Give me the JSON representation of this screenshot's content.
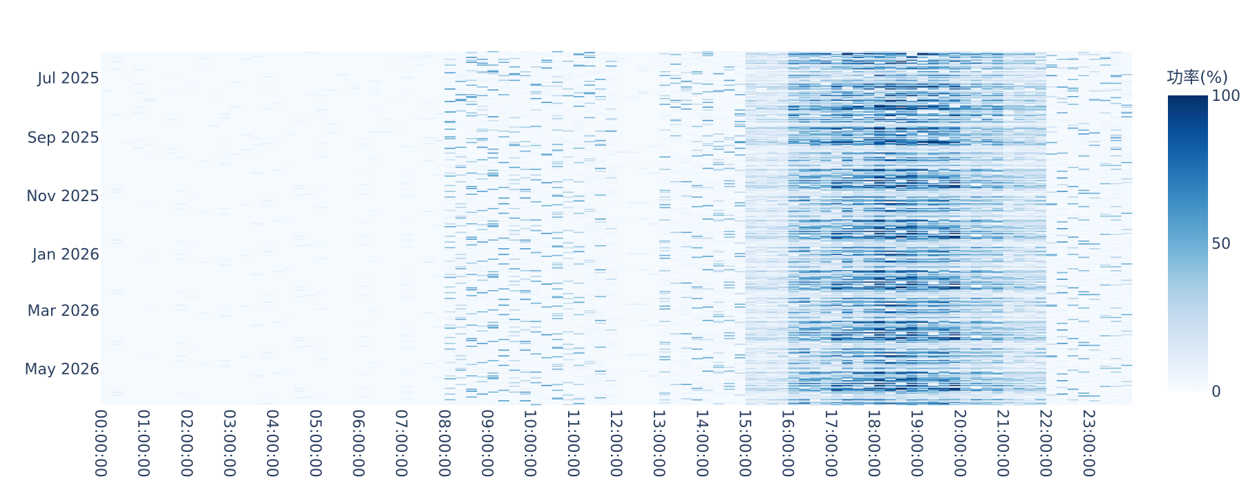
{
  "chart_data": {
    "type": "heatmap",
    "title": "",
    "xlabel": "",
    "ylabel": "",
    "x_categories": [
      "00:00:00",
      "01:00:00",
      "02:00:00",
      "03:00:00",
      "04:00:00",
      "05:00:00",
      "06:00:00",
      "07:00:00",
      "08:00:00",
      "09:00:00",
      "10:00:00",
      "11:00:00",
      "12:00:00",
      "13:00:00",
      "14:00:00",
      "15:00:00",
      "16:00:00",
      "17:00:00",
      "18:00:00",
      "19:00:00",
      "20:00:00",
      "21:00:00",
      "22:00:00",
      "23:00:00"
    ],
    "x_resolution": "15min",
    "y_range": [
      "2025-06-03",
      "2026-06-08"
    ],
    "y_tick_labels": [
      "Jul 2025",
      "Sep 2025",
      "Nov 2025",
      "Jan 2026",
      "Mar 2026",
      "May 2026"
    ],
    "y_tick_dates": [
      "2025-07-01",
      "2025-09-01",
      "2025-11-01",
      "2026-01-01",
      "2026-03-01",
      "2026-05-01"
    ],
    "hourly_mean_percent": [
      1,
      1,
      1,
      1,
      1,
      1,
      1,
      1,
      8,
      5,
      4,
      6,
      0,
      10,
      14,
      20,
      45,
      55,
      65,
      58,
      40,
      28,
      12,
      8
    ],
    "colorscale": "Blues",
    "colors": {
      "low": "#f7fbff",
      "high": "#08306b"
    },
    "colorbar": {
      "title": "功率(%)",
      "min": 0,
      "max": 100,
      "ticks": [
        "0",
        "50",
        "100"
      ]
    },
    "value_range": [
      0,
      100
    ],
    "legend": "colorbar-right"
  }
}
